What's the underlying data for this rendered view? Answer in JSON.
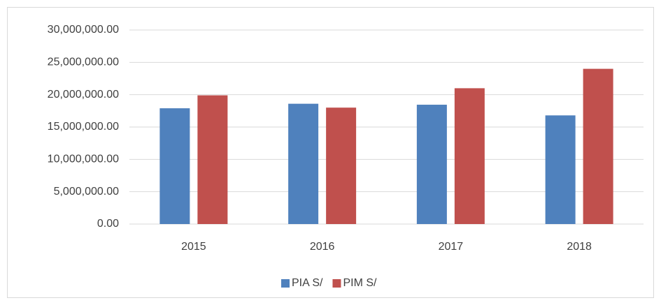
{
  "chart_data": {
    "type": "bar",
    "categories": [
      "2015",
      "2016",
      "2017",
      "2018"
    ],
    "series": [
      {
        "name": "PIA S/",
        "color": "#4f81bd",
        "values": [
          17900000,
          18600000,
          18450000,
          16800000
        ]
      },
      {
        "name": "PIM S/",
        "color": "#c0504d",
        "values": [
          19900000,
          18000000,
          21000000,
          24000000
        ]
      }
    ],
    "ylim": [
      0,
      30000000
    ],
    "yticks": [
      {
        "value": 0,
        "label": "0.00"
      },
      {
        "value": 5000000,
        "label": "5,000,000.00"
      },
      {
        "value": 10000000,
        "label": "10,000,000.00"
      },
      {
        "value": 15000000,
        "label": "15,000,000.00"
      },
      {
        "value": 20000000,
        "label": "20,000,000.00"
      },
      {
        "value": 25000000,
        "label": "25,000,000.00"
      },
      {
        "value": 30000000,
        "label": "30,000,000.00"
      }
    ],
    "grid": true,
    "legend": "bottom"
  }
}
